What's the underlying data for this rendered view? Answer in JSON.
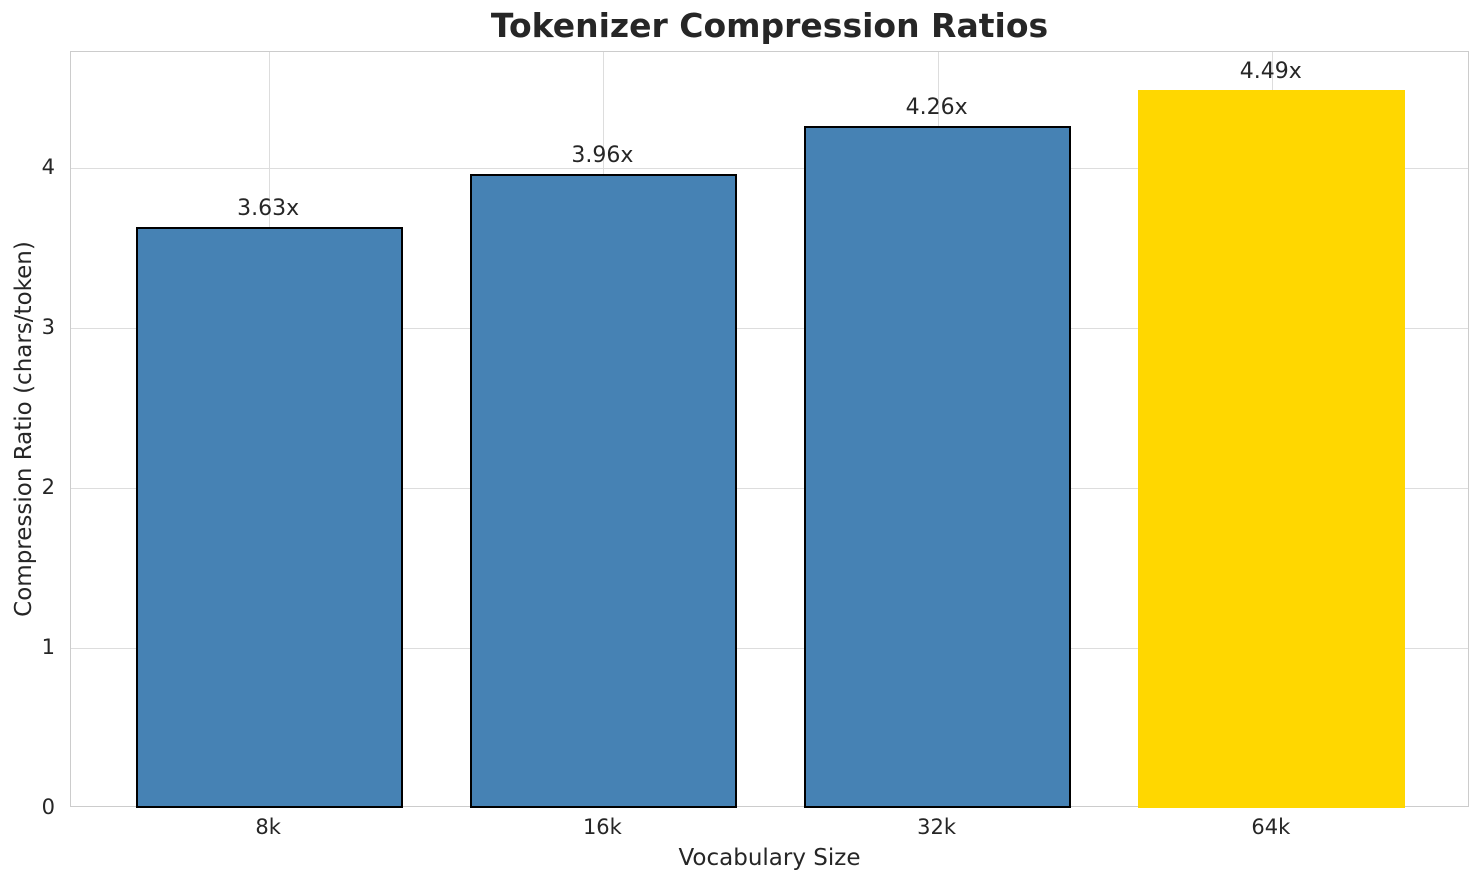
{
  "chart_data": {
    "type": "bar",
    "title": "Tokenizer Compression Ratios",
    "xlabel": "Vocabulary Size",
    "ylabel": "Compression Ratio (chars/token)",
    "categories": [
      "8k",
      "16k",
      "32k",
      "64k"
    ],
    "values": [
      3.63,
      3.96,
      4.26,
      4.49
    ],
    "bar_labels": [
      "3.63x",
      "3.96x",
      "4.26x",
      "4.49x"
    ],
    "bar_colors": [
      "#4682B4",
      "#4682B4",
      "#4682B4",
      "#FFD700"
    ],
    "bar_edge_colors": [
      "#000000",
      "#000000",
      "#000000",
      "none"
    ],
    "yticks": [
      0,
      1,
      2,
      3,
      4
    ],
    "ylim": [
      0,
      4.725
    ],
    "xlim": [
      -0.593,
      3.593
    ],
    "bar_width_frac": 0.8,
    "grid": "both",
    "grid_color": "#dddddd",
    "spine_color": "#cccccc",
    "text_color": "#262626",
    "accent_highlight_color": "#FFD700",
    "series_color": "#4682B4",
    "legend": "none"
  }
}
